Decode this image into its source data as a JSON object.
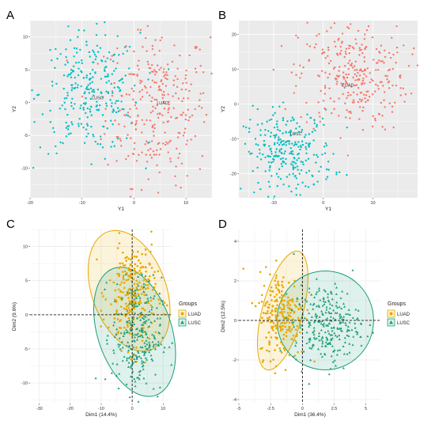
{
  "labels": {
    "A": "A",
    "B": "B",
    "C": "C",
    "D": "D"
  },
  "colors": {
    "luad_tsne": "#F8766D",
    "lusc_tsne": "#00BFC4",
    "luad_pca": "#E7A800",
    "lusc_pca": "#1B9E77",
    "panel_bg": "#EBEBEB"
  },
  "chart_data": [
    {
      "panel": "A",
      "type": "scatter",
      "xlabel": "Y1",
      "ylabel": "Y2",
      "xlim": [
        -20,
        15
      ],
      "ylim": [
        -14.5,
        12.5
      ],
      "xticks": [
        -20,
        -10,
        0,
        10
      ],
      "yticks": [
        -10,
        -5,
        0,
        5,
        10
      ],
      "annotations": [
        {
          "text": "LUSC",
          "x": -7,
          "y": 0.5
        },
        {
          "text": "LUAD",
          "x": 5.5,
          "y": -0.3
        }
      ],
      "series": [
        {
          "name": "LUAD",
          "n": 300,
          "cx": 4.5,
          "cy": -0.5,
          "sx": 5.0,
          "sy": 6.0
        },
        {
          "name": "LUSC",
          "n": 280,
          "cx": -8.5,
          "cy": 1.5,
          "sx": 4.8,
          "sy": 4.5
        }
      ]
    },
    {
      "panel": "B",
      "type": "scatter",
      "xlabel": "Y1",
      "ylabel": "Y2",
      "xlim": [
        -17,
        19
      ],
      "ylim": [
        -27,
        24
      ],
      "xticks": [
        -10,
        0,
        10
      ],
      "yticks": [
        -20,
        -10,
        0,
        10,
        20
      ],
      "annotations": [
        {
          "text": "LUAD",
          "x": 5,
          "y": 5
        },
        {
          "text": "LUSC",
          "x": -5.5,
          "y": -9
        }
      ],
      "series": [
        {
          "name": "LUAD",
          "n": 300,
          "cx": 6,
          "cy": 8,
          "sx": 5.5,
          "sy": 8
        },
        {
          "name": "LUSC",
          "n": 280,
          "cx": -7,
          "cy": -14,
          "sx": 4.5,
          "sy": 6
        }
      ]
    },
    {
      "panel": "C",
      "type": "scatter",
      "xlabel": "Dim1 (14.4%)",
      "ylabel": "Dim2 (9.6%)",
      "xlim": [
        -33,
        13
      ],
      "ylim": [
        -13,
        12.5
      ],
      "xticks": [
        -30,
        -20,
        -10,
        0,
        10
      ],
      "yticks": [
        -10,
        -5,
        0,
        5,
        10
      ],
      "legend": {
        "title": "Groups",
        "items": [
          "LUAD",
          "LUSC"
        ],
        "placement": "right"
      },
      "series": [
        {
          "name": "LUAD",
          "n": 260,
          "cx": 0,
          "cy": 3,
          "sx": 3.8,
          "sy": 4.0,
          "ellipse": {
            "cx": -1,
            "cy": 3.5,
            "rx": 12,
            "ry": 9.2,
            "angle": 20
          }
        },
        {
          "name": "LUSC",
          "n": 260,
          "cx": 1.5,
          "cy": -3,
          "sx": 4.0,
          "sy": 4.2,
          "ellipse": {
            "cx": 0.8,
            "cy": -2.5,
            "rx": 12,
            "ry": 9.8,
            "angle": 18
          }
        }
      ]
    },
    {
      "panel": "D",
      "type": "scatter",
      "xlabel": "Dim1 (36.4%)",
      "ylabel": "Dim2 (12.5%)",
      "xlim": [
        -5,
        6.2
      ],
      "ylim": [
        -4.2,
        4.6
      ],
      "xticks": [
        -5.0,
        -2.5,
        0.0,
        2.5,
        5.0
      ],
      "yticks": [
        -4,
        -2,
        0,
        2,
        4
      ],
      "legend": {
        "title": "Groups",
        "items": [
          "LUAD",
          "LUSC"
        ],
        "placement": "right"
      },
      "series": [
        {
          "name": "LUAD",
          "n": 230,
          "cx": -1.6,
          "cy": 0.3,
          "sx": 0.9,
          "sy": 1.1,
          "ellipse": {
            "cx": -1.55,
            "cy": 0.5,
            "rx": 1.6,
            "ry": 3.1,
            "angle": -15
          }
        },
        {
          "name": "LUSC",
          "n": 260,
          "cx": 1.9,
          "cy": -0.2,
          "sx": 1.3,
          "sy": 1.0,
          "ellipse": {
            "cx": 1.8,
            "cy": 0,
            "rx": 3.8,
            "ry": 2.5,
            "angle": 0
          }
        }
      ]
    }
  ]
}
